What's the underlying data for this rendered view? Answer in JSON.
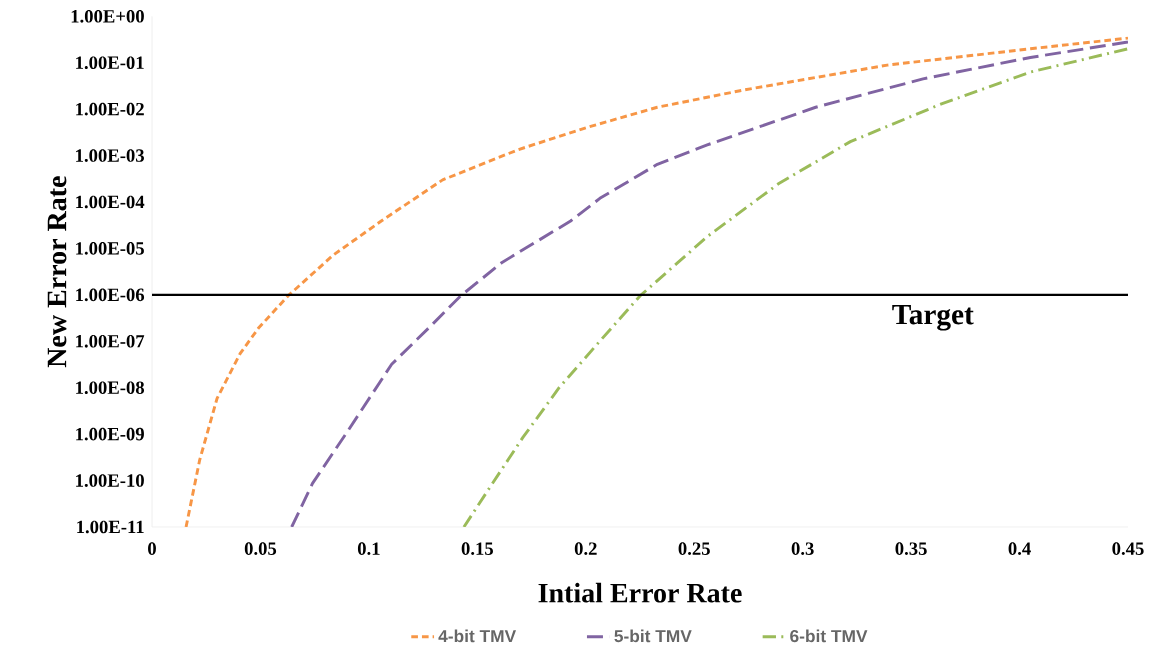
{
  "chart_data": {
    "type": "line",
    "xlabel": "Intial Error Rate",
    "ylabel": "New Error Rate",
    "log": "y",
    "legend": "bottom",
    "xlim": [
      0,
      0.45
    ],
    "xticks": [
      0,
      0.05,
      0.1,
      0.15,
      0.2,
      0.25,
      0.3,
      0.35,
      0.4,
      0.45
    ],
    "ylim": [
      1e-11,
      1
    ],
    "yticks": [
      {
        "value": 1e-11,
        "label": "1.00E-11"
      },
      {
        "value": 1e-10,
        "label": "1.00E-10"
      },
      {
        "value": 1e-09,
        "label": "1.00E-09"
      },
      {
        "value": 1e-08,
        "label": "1.00E-08"
      },
      {
        "value": 1e-07,
        "label": "1.00E-07"
      },
      {
        "value": 1e-06,
        "label": "1.00E-06"
      },
      {
        "value": 1e-05,
        "label": "1.00E-05"
      },
      {
        "value": 0.0001,
        "label": "1.00E-04"
      },
      {
        "value": 0.001,
        "label": "1.00E-03"
      },
      {
        "value": 0.01,
        "label": "1.00E-02"
      },
      {
        "value": 0.1,
        "label": "1.00E-01"
      },
      {
        "value": 1,
        "label": "1.00E+00"
      }
    ],
    "ref_lines": [
      {
        "axis": "y",
        "value": 1e-06,
        "label": "Target",
        "color": "#000000"
      }
    ],
    "series": [
      {
        "name": "4-bit TMV",
        "color": "#f79646",
        "line_style": "dashed",
        "x": [
          0.0157,
          0.022,
          0.03,
          0.0406,
          0.049,
          0.0627,
          0.0834,
          0.1057,
          0.134,
          0.169,
          0.201,
          0.233,
          0.273,
          0.339,
          0.405,
          0.45
        ],
        "values": [
          1e-11,
          2.8e-10,
          5.9e-09,
          5.4e-08,
          1.9e-07,
          9.5e-07,
          7.1e-06,
          3.9e-05,
          0.0003,
          0.00135,
          0.0041,
          0.011,
          0.026,
          0.089,
          0.2,
          0.34
        ]
      },
      {
        "name": "5-bit TMV",
        "color": "#8064a2",
        "line_style": "long dashed",
        "x": [
          0.0644,
          0.074,
          0.0899,
          0.1105,
          0.1296,
          0.1423,
          0.1614,
          0.193,
          0.2065,
          0.233,
          0.256,
          0.306,
          0.3555,
          0.405,
          0.45
        ],
        "values": [
          1e-11,
          8.7e-11,
          1.1e-09,
          3.2e-08,
          2.4e-07,
          9.5e-07,
          5e-06,
          3.9e-05,
          0.00012,
          0.00065,
          0.0017,
          0.011,
          0.045,
          0.13,
          0.28
        ]
      },
      {
        "name": "6-bit TMV",
        "color": "#9bbb59",
        "line_style": "dashdot",
        "x": [
          0.1438,
          0.155,
          0.171,
          0.1877,
          0.206,
          0.225,
          0.256,
          0.289,
          0.322,
          0.364,
          0.405,
          0.45
        ],
        "values": [
          1e-11,
          6.3e-11,
          8.5e-10,
          1e-08,
          9.5e-08,
          9.5e-07,
          1.8e-05,
          0.00025,
          0.002,
          0.013,
          0.063,
          0.2
        ]
      }
    ]
  }
}
